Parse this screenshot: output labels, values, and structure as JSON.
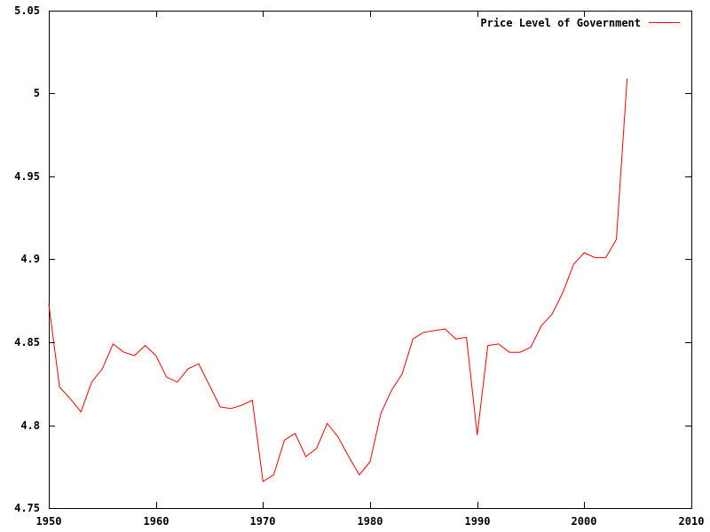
{
  "chart_data": {
    "type": "line",
    "title": "",
    "xlabel": "",
    "ylabel": "",
    "xlim": [
      1950,
      2010
    ],
    "ylim": [
      4.75,
      5.05
    ],
    "x_ticks": [
      1950,
      1960,
      1970,
      1980,
      1990,
      2000,
      2010
    ],
    "x_tick_labels": [
      "1950",
      "1960",
      "1970",
      "1980",
      "1990",
      "2000",
      "2010"
    ],
    "y_ticks": [
      4.75,
      4.8,
      4.85,
      4.9,
      4.95,
      5.0,
      5.05
    ],
    "y_tick_labels": [
      "4.75",
      "4.8",
      "4.85",
      "4.9",
      "4.95",
      "5",
      "5.05"
    ],
    "grid": false,
    "legend_position": "top-right",
    "series": [
      {
        "name": "Price Level of Government",
        "color": "#ff0000",
        "x": [
          1950,
          1951,
          1952,
          1953,
          1954,
          1955,
          1956,
          1957,
          1958,
          1959,
          1960,
          1961,
          1962,
          1963,
          1964,
          1965,
          1966,
          1967,
          1968,
          1969,
          1970,
          1971,
          1972,
          1973,
          1974,
          1975,
          1976,
          1977,
          1978,
          1979,
          1980,
          1981,
          1982,
          1983,
          1984,
          1985,
          1986,
          1987,
          1988,
          1989,
          1990,
          1991,
          1992,
          1993,
          1994,
          1995,
          1996,
          1997,
          1998,
          1999,
          2000,
          2001,
          2002,
          2003,
          2004
        ],
        "y": [
          4.873,
          4.823,
          4.816,
          4.808,
          4.826,
          4.834,
          4.849,
          4.844,
          4.842,
          4.848,
          4.842,
          4.829,
          4.826,
          4.834,
          4.837,
          4.824,
          4.811,
          4.81,
          4.812,
          4.815,
          4.766,
          4.77,
          4.791,
          4.795,
          4.781,
          4.786,
          4.801,
          4.793,
          4.781,
          4.77,
          4.778,
          4.807,
          4.821,
          4.831,
          4.852,
          4.856,
          4.857,
          4.858,
          4.852,
          4.853,
          4.794,
          4.848,
          4.849,
          4.844,
          4.844,
          4.847,
          4.86,
          4.867,
          4.88,
          4.897,
          4.904,
          4.901,
          4.901,
          4.912,
          5.009
        ]
      }
    ]
  }
}
